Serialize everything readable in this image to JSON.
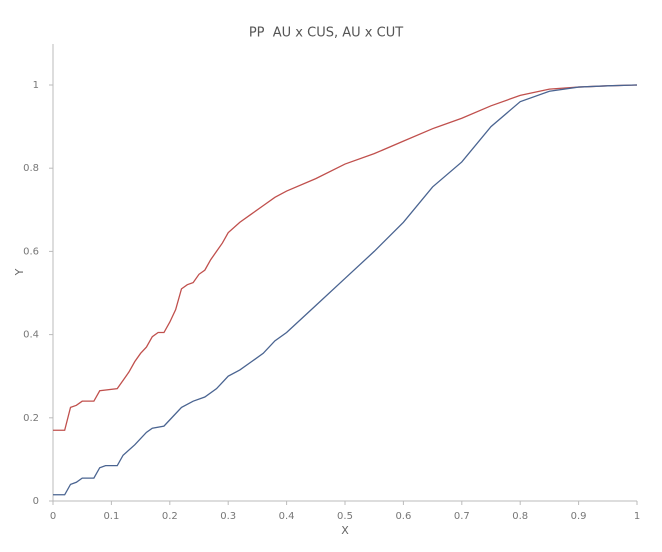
{
  "chart_data": {
    "type": "line",
    "title": "PP  AU x CUS, AU x CUT",
    "x_label": "X",
    "y_label": "Y",
    "xlim": [
      0,
      1
    ],
    "ylim": [
      0,
      1.1
    ],
    "xticks": [
      0,
      0.1,
      0.2,
      0.3,
      0.4,
      0.5,
      0.6,
      0.7,
      0.8,
      0.9,
      1
    ],
    "yticks": [
      0,
      0.2,
      0.4,
      0.6,
      0.8,
      1
    ],
    "series": [
      {
        "color": "#c0504d",
        "x": [
          0,
          0.02,
          0.03,
          0.04,
          0.05,
          0.07,
          0.08,
          0.11,
          0.12,
          0.13,
          0.14,
          0.15,
          0.16,
          0.17,
          0.18,
          0.19,
          0.2,
          0.21,
          0.22,
          0.23,
          0.24,
          0.25,
          0.26,
          0.27,
          0.28,
          0.29,
          0.3,
          0.32,
          0.34,
          0.36,
          0.38,
          0.4,
          0.45,
          0.5,
          0.55,
          0.6,
          0.65,
          0.7,
          0.75,
          0.8,
          0.85,
          0.9,
          0.95,
          1
        ],
        "values": [
          0.17,
          0.17,
          0.225,
          0.23,
          0.24,
          0.24,
          0.265,
          0.27,
          0.29,
          0.31,
          0.335,
          0.355,
          0.37,
          0.395,
          0.405,
          0.405,
          0.43,
          0.46,
          0.51,
          0.52,
          0.525,
          0.545,
          0.555,
          0.58,
          0.6,
          0.62,
          0.645,
          0.67,
          0.69,
          0.71,
          0.73,
          0.745,
          0.775,
          0.81,
          0.835,
          0.865,
          0.895,
          0.92,
          0.95,
          0.975,
          0.99,
          0.995,
          0.998,
          1
        ]
      },
      {
        "color": "#4a6491",
        "x": [
          0,
          0.02,
          0.03,
          0.04,
          0.05,
          0.07,
          0.08,
          0.09,
          0.11,
          0.12,
          0.14,
          0.16,
          0.17,
          0.19,
          0.2,
          0.22,
          0.24,
          0.26,
          0.28,
          0.3,
          0.32,
          0.34,
          0.36,
          0.38,
          0.4,
          0.45,
          0.5,
          0.55,
          0.6,
          0.65,
          0.7,
          0.75,
          0.8,
          0.85,
          0.9,
          0.95,
          1
        ],
        "values": [
          0.015,
          0.015,
          0.04,
          0.045,
          0.055,
          0.055,
          0.08,
          0.085,
          0.085,
          0.11,
          0.135,
          0.165,
          0.175,
          0.18,
          0.195,
          0.225,
          0.24,
          0.25,
          0.27,
          0.3,
          0.315,
          0.335,
          0.355,
          0.385,
          0.405,
          0.47,
          0.535,
          0.6,
          0.67,
          0.755,
          0.815,
          0.9,
          0.96,
          0.985,
          0.995,
          0.998,
          1
        ]
      }
    ]
  }
}
